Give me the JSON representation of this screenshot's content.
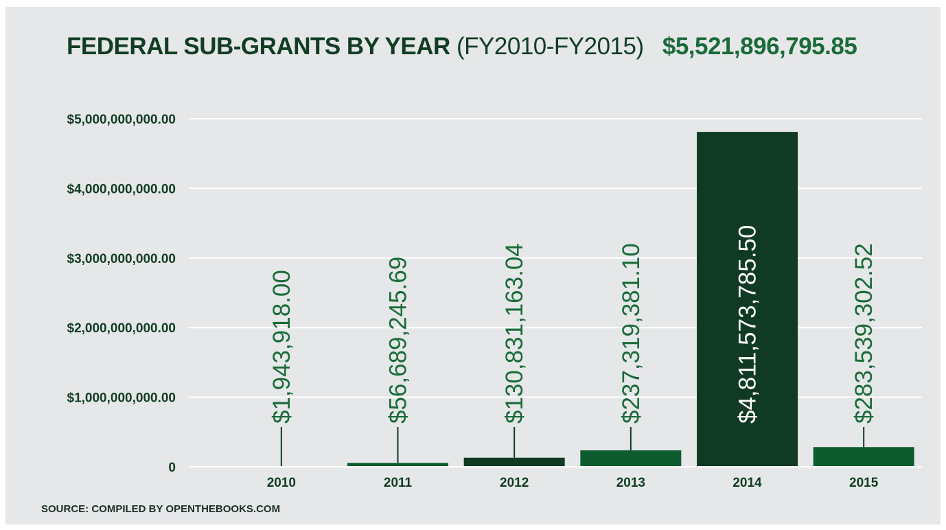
{
  "title": {
    "main": "FEDERAL SUB-GRANTS BY YEAR",
    "period": "(FY2010-FY2015)",
    "total": "$5,521,896,795.85"
  },
  "source": "SOURCE: COMPILED BY OPENTHEBOOKS.COM",
  "colors": {
    "background": "#e6e7e8",
    "bar_medium": "#0f5b30",
    "bar_dark": "#113a24",
    "label_green": "#1a6b3a",
    "axis_text": "#123d25"
  },
  "chart_data": {
    "type": "bar",
    "categories": [
      "2010",
      "2011",
      "2012",
      "2013",
      "2014",
      "2015"
    ],
    "values": [
      1943918.0,
      56689245.69,
      130831163.04,
      237319381.1,
      4811573785.5,
      283539302.52
    ],
    "data_labels": [
      "$1,943,918.00",
      "$56,689,245.69",
      "$130,831,163.04",
      "$237,319,381.10",
      "$4,811,573,785.50",
      "$283,539,302.52"
    ],
    "ylim": [
      0,
      5000000000
    ],
    "yticks": [
      0,
      1000000000,
      2000000000,
      3000000000,
      4000000000,
      5000000000
    ],
    "ytick_labels": [
      "0",
      "$1,000,000,000.00",
      "$2,000,000,000.00",
      "$3,000,000,000.00",
      "$4,000,000,000.00",
      "$5,000,000,000.00"
    ],
    "bar_colors": [
      "#0f5b30",
      "#0f5b30",
      "#113a24",
      "#0f5b30",
      "#113a24",
      "#0f5b30"
    ],
    "xlabel": "",
    "ylabel": "",
    "grid": true,
    "legend": "none"
  }
}
